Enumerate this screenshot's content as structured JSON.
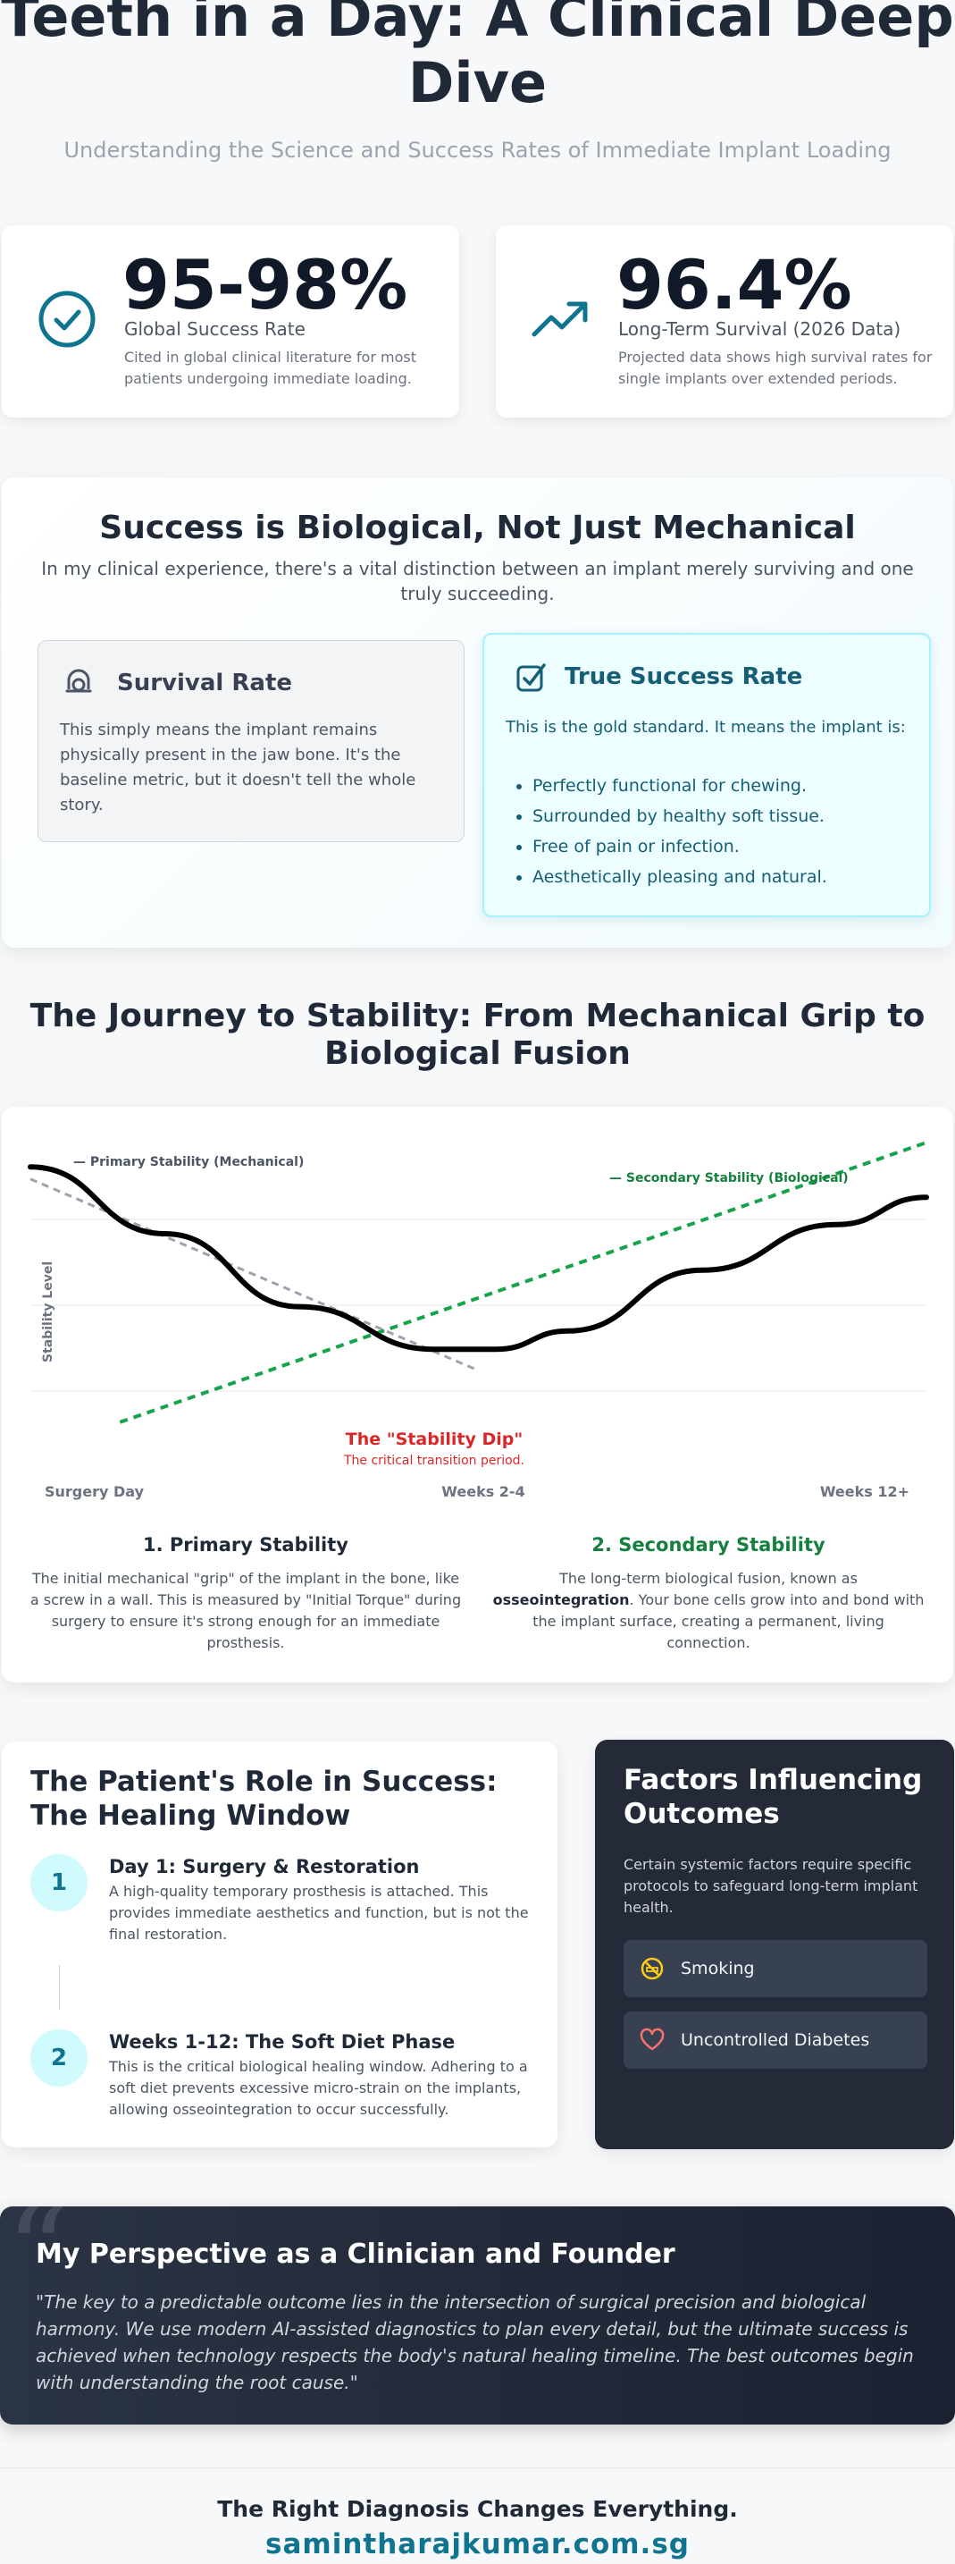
{
  "hero": {
    "title": "Teeth in a Day: A Clinical Deep Dive",
    "subtitle": "Understanding the Science and Success Rates of Immediate Implant Loading"
  },
  "stats": [
    {
      "icon": "check-circle-icon",
      "value": "95-98%",
      "label": "Global Success Rate",
      "note": "Cited in global clinical literature for most patients undergoing immediate loading."
    },
    {
      "icon": "trending-up-icon",
      "value": "96.4%",
      "label": "Long-Term Survival (2026 Data)",
      "note": "Projected data shows high survival rates for single implants over extended periods."
    }
  ],
  "success_section": {
    "title": "Success is Biological, Not Just Mechanical",
    "lead": "In my clinical experience, there's a vital distinction between an implant merely surviving and one truly succeeding.",
    "survival": {
      "icon": "ring-icon",
      "title": "Survival Rate",
      "text": "This simply means the implant remains physically present in the jaw bone. It's the baseline metric, but it doesn't tell the whole story."
    },
    "true_success": {
      "icon": "check-badge-icon",
      "title": "True Success Rate",
      "text": "This is the gold standard. It means the implant is:",
      "items": [
        "Perfectly functional for chewing.",
        "Surrounded by healthy soft tissue.",
        "Free of pain or infection.",
        "Aesthetically pleasing and natural."
      ]
    }
  },
  "journey": {
    "title": "The Journey to Stability: From Mechanical Grip to Biological Fusion",
    "primary_title": "1. Primary Stability",
    "primary_text_1": "The initial mechanical \"grip\" of the implant in the bone, like a screw in a wall. This is measured by \"Initial Torque\" during surgery to ensure it's strong enough for an immediate prosthesis.",
    "secondary_title": "2. Secondary Stability",
    "secondary_text_1": "The long-term biological fusion, known as ",
    "secondary_text_bold": "osseointegration",
    "secondary_text_2": ". Your bone cells grow into and bond with the implant surface, creating a permanent, living connection."
  },
  "chart_data": {
    "type": "line",
    "ylabel": "Stability Level",
    "x_ticks": [
      "Surgery Day",
      "Weeks 2-4",
      "Weeks 12+"
    ],
    "annotation_title": "The \"Stability Dip\"",
    "annotation_sub": "The critical transition period.",
    "series": [
      {
        "name": "Primary Stability (Mechanical)",
        "color": "#9ca3af",
        "style": "dashed",
        "points": [
          [
            0,
            88
          ],
          [
            0.5,
            25
          ]
        ]
      },
      {
        "name": "Secondary Stability (Biological)",
        "color": "#16a34a",
        "style": "dashed",
        "points": [
          [
            0.1,
            8
          ],
          [
            1,
            100
          ]
        ]
      },
      {
        "name": "",
        "color": "#000000",
        "style": "solid",
        "points": [
          [
            0,
            92
          ],
          [
            0.15,
            70
          ],
          [
            0.3,
            46
          ],
          [
            0.45,
            32
          ],
          [
            0.52,
            32
          ],
          [
            0.6,
            38
          ],
          [
            0.75,
            58
          ],
          [
            0.9,
            73
          ],
          [
            1,
            82
          ]
        ]
      }
    ],
    "ylim": [
      0,
      100
    ],
    "grid": true
  },
  "patient_role": {
    "title": "The Patient's Role in Success: The Healing Window",
    "steps": [
      {
        "num": "1",
        "title": "Day 1: Surgery & Restoration",
        "text": "A high-quality temporary prosthesis is attached. This provides immediate aesthetics and function, but is not the final restoration."
      },
      {
        "num": "2",
        "title": "Weeks 1-12: The Soft Diet Phase",
        "text": "This is the critical biological healing window. Adhering to a soft diet prevents excessive micro-strain on the implants, allowing osseointegration to occur successfully."
      }
    ]
  },
  "factors": {
    "title": "Factors Influencing Outcomes",
    "text": "Certain systemic factors require specific protocols to safeguard long-term implant health.",
    "items": [
      {
        "icon": "no-smoking-icon",
        "label": "Smoking",
        "color": "#facc15"
      },
      {
        "icon": "heart-icon",
        "label": "Uncontrolled Diabetes",
        "color": "#f87171"
      }
    ]
  },
  "perspective": {
    "title": "My Perspective as a Clinician and Founder",
    "quote": "\"The key to a predictable outcome lies in the intersection of surgical precision and biological harmony. We use modern AI-assisted diagnostics to plan every detail, but the ultimate success is achieved when technology respects the body's natural healing timeline. The best outcomes begin with understanding the root cause.\""
  },
  "footer": {
    "tagline": "The Right Diagnosis Changes Everything.",
    "url": "samintharajkumar.com.sg"
  },
  "colors": {
    "accent": "#0e7490",
    "dark": "#1f2937",
    "green": "#15803d",
    "red": "#dc2626"
  }
}
